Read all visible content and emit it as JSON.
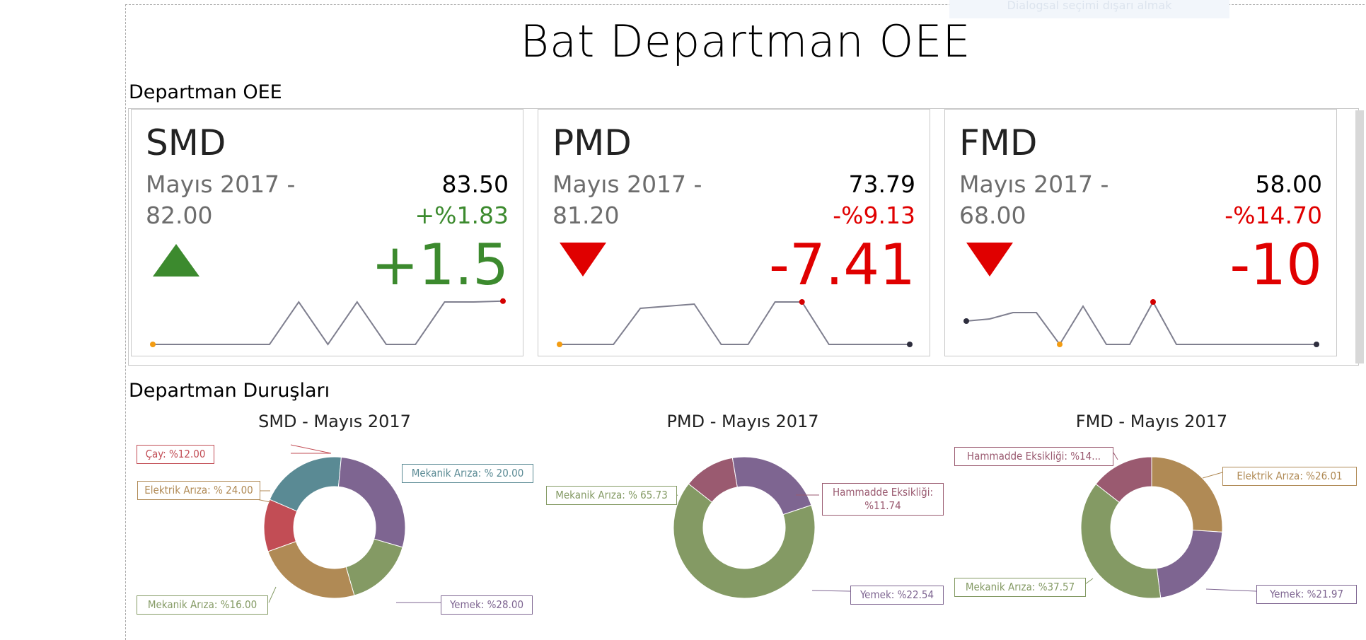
{
  "page": {
    "title": "Bat Departman OEE",
    "ghost_text": "Dialogsal seçimi dışarı almak",
    "sections": {
      "oee": "Departman OEE",
      "stops": "Departman Duruşları"
    }
  },
  "colors": {
    "up": "#3c8a2e",
    "down": "#e00000",
    "line": "#7f7f8f",
    "start": "#f39c12",
    "high": "#d40000",
    "end": "#2e2e3e"
  },
  "kpis": [
    {
      "name": "SMD",
      "period_line1": "Mayıs 2017 -",
      "target": "82.00",
      "actual": "83.50",
      "change_pct": "+%1.83",
      "delta": "+1.5",
      "direction": "up",
      "sparkline": [
        0,
        0,
        0,
        0,
        0,
        1,
        0,
        1,
        0,
        0,
        1,
        1,
        1.02
      ],
      "spark_markers": {
        "first": 0,
        "last": 12
      }
    },
    {
      "name": "PMD",
      "period_line1": "Mayıs 2017 -",
      "target": "81.20",
      "actual": "73.79",
      "change_pct": "-%9.13",
      "delta": "-7.41",
      "direction": "down",
      "sparkline": [
        0,
        0,
        0,
        0.85,
        0.9,
        0.95,
        0,
        0,
        1,
        1,
        0,
        0,
        0,
        0
      ],
      "spark_markers": {
        "first": 0,
        "high": 9,
        "last": 13
      }
    },
    {
      "name": "FMD",
      "period_line1": "Mayıs 2017 -",
      "target": "68.00",
      "actual": "58.00",
      "change_pct": "-%14.70",
      "delta": "-10",
      "direction": "down",
      "sparkline": [
        0.55,
        0.6,
        0.75,
        0.75,
        0,
        0.9,
        0,
        0,
        1,
        0,
        0,
        0,
        0,
        0,
        0,
        0
      ],
      "spark_markers": {
        "first": 0,
        "low": 4,
        "high": 8,
        "last": 15
      }
    }
  ],
  "chart_data": [
    {
      "type": "pie",
      "style": "donut",
      "title": "SMD - Mayıs 2017",
      "slices": [
        {
          "name": "Mekanik Arıza",
          "value": 20.0,
          "label": "Mekanik Arıza: % 20.00",
          "color": "#5a8a94"
        },
        {
          "name": "Yemek",
          "value": 28.0,
          "label": "Yemek: %28.00",
          "color": "#7e6591"
        },
        {
          "name": "Mekanik Arıza",
          "value": 16.0,
          "label": "Mekanik Arıza: %16.00",
          "color": "#849a64"
        },
        {
          "name": "Elektrik Arıza",
          "value": 24.0,
          "label": "Elektrik Arıza: % 24.00",
          "color": "#b08a55"
        },
        {
          "name": "Çay",
          "value": 12.0,
          "label": "Çay: %12.00",
          "color": "#c24d55"
        }
      ]
    },
    {
      "type": "pie",
      "style": "donut",
      "title": "PMD - Mayıs 2017",
      "slices": [
        {
          "name": "Hammadde Eksikliği",
          "value": 11.74,
          "label": "Hammadde Eksikliği: %11.74",
          "color": "#9a5a70"
        },
        {
          "name": "Yemek",
          "value": 22.54,
          "label": "Yemek: %22.54",
          "color": "#7e6591"
        },
        {
          "name": "Mekanik Arıza",
          "value": 65.73,
          "label": "Mekanik Arıza: % 65.73",
          "color": "#849a64"
        }
      ]
    },
    {
      "type": "pie",
      "style": "donut",
      "title": "FMD - Mayıs 2017",
      "slices": [
        {
          "name": "Elektrik Arıza",
          "value": 26.01,
          "label": "Elektrik Arıza: %26.01",
          "color": "#b08a55"
        },
        {
          "name": "Yemek",
          "value": 21.97,
          "label": "Yemek: %21.97",
          "color": "#7e6591"
        },
        {
          "name": "Mekanik Arıza",
          "value": 37.57,
          "label": "Mekanik Arıza: %37.57",
          "color": "#849a64"
        },
        {
          "name": "Hammadde Eksikliği",
          "value": 14.45,
          "label": "Hammadde Eksikliği: %14...",
          "color": "#9a5a70"
        }
      ]
    }
  ]
}
